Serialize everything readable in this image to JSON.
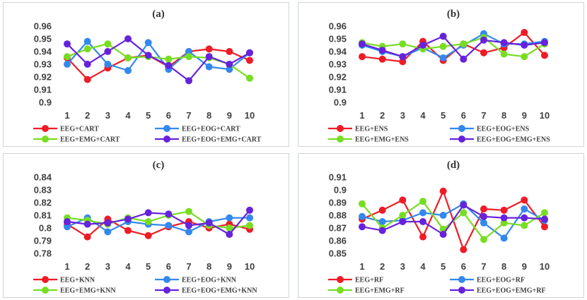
{
  "chart_data": [
    {
      "type": "line",
      "title": "(a)",
      "categories": [
        "1",
        "2",
        "3",
        "4",
        "5",
        "6",
        "7",
        "8",
        "9",
        "10"
      ],
      "ylim": [
        0.9,
        0.96
      ],
      "yticks": [
        "0.9",
        "0.91",
        "0.92",
        "0.93",
        "0.94",
        "0.95",
        "0.96"
      ],
      "series": [
        {
          "name": "EEG+CART",
          "color": "#ee1c25",
          "values": [
            0.935,
            0.918,
            0.927,
            0.935,
            0.937,
            0.928,
            0.94,
            0.942,
            0.94,
            0.933
          ]
        },
        {
          "name": "EEG+EOG+CART",
          "color": "#3388ee",
          "values": [
            0.93,
            0.948,
            0.93,
            0.925,
            0.947,
            0.926,
            0.94,
            0.928,
            0.926,
            0.939
          ]
        },
        {
          "name": "EEG+EMG+CART",
          "color": "#77dd22",
          "values": [
            0.936,
            0.942,
            0.946,
            0.935,
            0.936,
            0.934,
            0.936,
            0.935,
            0.93,
            0.919
          ]
        },
        {
          "name": "EEG+EOG+EMG+CART",
          "color": "#6622dd",
          "values": [
            0.946,
            0.93,
            0.94,
            0.95,
            0.937,
            0.929,
            0.917,
            0.936,
            0.93,
            0.939
          ]
        }
      ]
    },
    {
      "type": "line",
      "title": "(b)",
      "categories": [
        "1",
        "2",
        "3",
        "4",
        "5",
        "6",
        "7",
        "8",
        "9",
        "10"
      ],
      "ylim": [
        0.9,
        0.96
      ],
      "yticks": [
        "0.9",
        "0.91",
        "0.92",
        "0.93",
        "0.94",
        "0.95",
        "0.96"
      ],
      "series": [
        {
          "name": "EEG+ENS",
          "color": "#ee1c25",
          "values": [
            0.936,
            0.934,
            0.932,
            0.948,
            0.933,
            0.946,
            0.939,
            0.943,
            0.955,
            0.937
          ]
        },
        {
          "name": "EEG+EOG+ENS",
          "color": "#3388ee",
          "values": [
            0.945,
            0.94,
            0.936,
            0.943,
            0.935,
            0.945,
            0.954,
            0.946,
            0.946,
            0.948
          ]
        },
        {
          "name": "EEG+EMG+ENS",
          "color": "#77dd22",
          "values": [
            0.947,
            0.944,
            0.946,
            0.942,
            0.944,
            0.946,
            0.951,
            0.938,
            0.936,
            0.946
          ]
        },
        {
          "name": "EEG+EOG+EMG+ENS",
          "color": "#6622dd",
          "values": [
            0.946,
            0.941,
            0.936,
            0.945,
            0.952,
            0.934,
            0.949,
            0.947,
            0.945,
            0.947
          ]
        }
      ]
    },
    {
      "type": "line",
      "title": "(c)",
      "categories": [
        "1",
        "2",
        "3",
        "4",
        "5",
        "6",
        "7",
        "8",
        "9",
        "10"
      ],
      "ylim": [
        0.78,
        0.84
      ],
      "yticks": [
        "0.78",
        "0.79",
        "0.8",
        "0.81",
        "0.82",
        "0.83",
        "0.84"
      ],
      "series": [
        {
          "name": "EEG+KNN",
          "color": "#ee1c25",
          "values": [
            0.803,
            0.793,
            0.807,
            0.798,
            0.794,
            0.801,
            0.805,
            0.8,
            0.803,
            0.799
          ]
        },
        {
          "name": "EEG+EOG+KNN",
          "color": "#3388ee",
          "values": [
            0.801,
            0.808,
            0.797,
            0.805,
            0.803,
            0.802,
            0.797,
            0.805,
            0.808,
            0.808
          ]
        },
        {
          "name": "EEG+EMG+KNN",
          "color": "#77dd22",
          "values": [
            0.808,
            0.806,
            0.803,
            0.808,
            0.805,
            0.81,
            0.813,
            0.802,
            0.8,
            0.802
          ]
        },
        {
          "name": "EEG+EOG+EMG+KNN",
          "color": "#6622dd",
          "values": [
            0.805,
            0.803,
            0.804,
            0.807,
            0.812,
            0.811,
            0.802,
            0.804,
            0.795,
            0.814
          ]
        }
      ]
    },
    {
      "type": "line",
      "title": "(d)",
      "categories": [
        "1",
        "2",
        "3",
        "4",
        "5",
        "6",
        "7",
        "8",
        "9",
        "10"
      ],
      "ylim": [
        0.85,
        0.91
      ],
      "yticks": [
        "0.85",
        "0.86",
        "0.87",
        "0.88",
        "0.89",
        "0.9",
        "0.91"
      ],
      "series": [
        {
          "name": "EEG+RF",
          "color": "#ee1c25",
          "values": [
            0.877,
            0.884,
            0.892,
            0.863,
            0.899,
            0.853,
            0.885,
            0.884,
            0.892,
            0.871
          ]
        },
        {
          "name": "EEG+EOG+RF",
          "color": "#3388ee",
          "values": [
            0.879,
            0.875,
            0.876,
            0.882,
            0.88,
            0.889,
            0.874,
            0.862,
            0.885,
            0.876
          ]
        },
        {
          "name": "EEG+EMG+RF",
          "color": "#77dd22",
          "values": [
            0.889,
            0.87,
            0.88,
            0.891,
            0.869,
            0.882,
            0.861,
            0.874,
            0.872,
            0.882
          ]
        },
        {
          "name": "EEG+EOG+EMG+RF",
          "color": "#6622dd",
          "values": [
            0.871,
            0.868,
            0.875,
            0.875,
            0.865,
            0.888,
            0.879,
            0.878,
            0.878,
            0.877
          ]
        }
      ]
    }
  ]
}
